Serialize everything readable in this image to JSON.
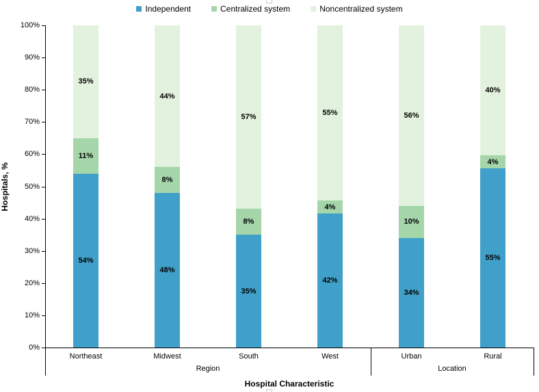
{
  "chart_data": {
    "type": "bar",
    "subtype": "stacked-100",
    "title": "",
    "xlabel": "Hospital Characteristic",
    "ylabel": "Hospitals, %",
    "ylim": [
      0,
      100
    ],
    "y_tick_step": 10,
    "y_tick_suffix": "%",
    "grid": false,
    "legend_position": "top",
    "value_suffix": "%",
    "categories": [
      "Northeast",
      "Midwest",
      "South",
      "West",
      "Urban",
      "Rural"
    ],
    "groups": [
      {
        "label": "Region",
        "categories": [
          "Northeast",
          "Midwest",
          "South",
          "West"
        ],
        "span": 4
      },
      {
        "label": "Location",
        "categories": [
          "Urban",
          "Rural"
        ],
        "span": 2
      }
    ],
    "series": [
      {
        "name": "Independent",
        "color": "#41a0c9",
        "values": [
          54,
          48,
          35,
          42,
          34,
          55
        ]
      },
      {
        "name": "Centralized system",
        "color": "#a5d6aa",
        "values": [
          11,
          8,
          8,
          4,
          10,
          4
        ]
      },
      {
        "name": "Noncentralized system",
        "color": "#e3f2de",
        "values": [
          35,
          44,
          57,
          55,
          56,
          40
        ]
      }
    ],
    "colors": {
      "independent": "#41a0c9",
      "centralized_system": "#a5d6aa",
      "noncentralized_system": "#e3f2de",
      "axis": "#000000",
      "label_text": "#000000"
    }
  }
}
